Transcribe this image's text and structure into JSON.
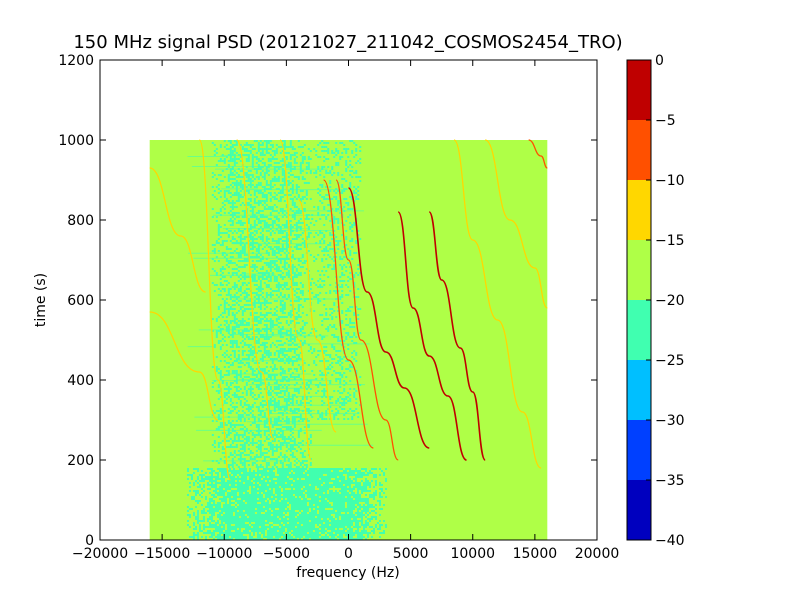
{
  "chart_data": {
    "type": "heatmap",
    "title": "150 MHz signal PSD (20121027_211042_COSMOS2454_TRO)",
    "xlabel": "frequency (Hz)",
    "ylabel": "time (s)",
    "xlim": [
      -20000,
      20000
    ],
    "ylim": [
      0,
      1200
    ],
    "xticks": [
      -20000,
      -15000,
      -10000,
      -5000,
      0,
      5000,
      10000,
      15000,
      20000
    ],
    "xtick_labels": [
      "−20000",
      "−15000",
      "−10000",
      "−5000",
      "0",
      "5000",
      "10000",
      "15000",
      "20000"
    ],
    "yticks": [
      0,
      200,
      400,
      600,
      800,
      1000,
      1200
    ],
    "ytick_labels": [
      "0",
      "200",
      "400",
      "600",
      "800",
      "1000",
      "1200"
    ],
    "data_extent": {
      "x": [
        -16000,
        16000
      ],
      "y": [
        0,
        1000
      ]
    },
    "colorbar": {
      "levels": [
        -40,
        -35,
        -30,
        -25,
        -20,
        -15,
        -10,
        -5,
        0
      ],
      "tick_labels": [
        "−40",
        "−35",
        "−30",
        "−25",
        "−20",
        "−15",
        "−10",
        "−5",
        "0"
      ],
      "colors": [
        "#0000bf",
        "#0040ff",
        "#00bfff",
        "#40ffb0",
        "#afff47",
        "#ffd700",
        "#ff5000",
        "#bf0000"
      ]
    },
    "background_level": "-20 to -15",
    "noise_level": "-25 to -20",
    "noise_regions": [
      {
        "x": [
          -13000,
          3000
        ],
        "y": [
          0,
          180
        ],
        "density": 0.85
      },
      {
        "x": [
          -11000,
          -3000
        ],
        "y": [
          180,
          1000
        ],
        "density": 0.45
      },
      {
        "x": [
          -3000,
          1000
        ],
        "y": [
          300,
          1000
        ],
        "density": 0.25
      }
    ],
    "signal_traces": [
      {
        "points": [
          [
            -16000,
            930
          ],
          [
            -13500,
            760
          ],
          [
            -11500,
            620
          ]
        ],
        "level": "-15 to -10"
      },
      {
        "points": [
          [
            -16000,
            570
          ],
          [
            -12000,
            420
          ],
          [
            -10500,
            300
          ]
        ],
        "level": "-15 to -10"
      },
      {
        "points": [
          [
            -12000,
            1000
          ],
          [
            -10500,
            400
          ],
          [
            -9500,
            150
          ]
        ],
        "level": "-15 to -10"
      },
      {
        "points": [
          [
            -9000,
            1000
          ],
          [
            -7000,
            420
          ],
          [
            -6000,
            250
          ]
        ],
        "level": "-15 to -10"
      },
      {
        "points": [
          [
            -5500,
            1000
          ],
          [
            -4000,
            500
          ],
          [
            -3000,
            200
          ]
        ],
        "level": "-15 to -10"
      },
      {
        "points": [
          [
            -4000,
            850
          ],
          [
            -2500,
            500
          ],
          [
            -1000,
            270
          ]
        ],
        "level": "-15 to -10"
      },
      {
        "points": [
          [
            -2000,
            900
          ],
          [
            0,
            450
          ],
          [
            2000,
            230
          ]
        ],
        "level": "-10 to -5"
      },
      {
        "points": [
          [
            -1000,
            900
          ],
          [
            0,
            700
          ],
          [
            1000,
            500
          ],
          [
            3000,
            300
          ],
          [
            4000,
            200
          ]
        ],
        "level": "-10 to -5"
      },
      {
        "points": [
          [
            0,
            880
          ],
          [
            1500,
            620
          ],
          [
            3000,
            470
          ],
          [
            4500,
            380
          ],
          [
            6500,
            230
          ]
        ],
        "level": "-5 to 0"
      },
      {
        "points": [
          [
            4000,
            820
          ],
          [
            5200,
            580
          ],
          [
            6500,
            460
          ],
          [
            8000,
            360
          ],
          [
            9500,
            200
          ]
        ],
        "level": "-5 to 0"
      },
      {
        "points": [
          [
            6500,
            820
          ],
          [
            7500,
            650
          ],
          [
            9000,
            480
          ],
          [
            10000,
            370
          ],
          [
            11000,
            200
          ]
        ],
        "level": "-5 to 0"
      },
      {
        "points": [
          [
            8500,
            1000
          ],
          [
            10000,
            750
          ],
          [
            12000,
            550
          ],
          [
            14000,
            320
          ],
          [
            15500,
            180
          ]
        ],
        "level": "-15 to -10"
      },
      {
        "points": [
          [
            11000,
            1000
          ],
          [
            13000,
            800
          ],
          [
            15000,
            680
          ],
          [
            16000,
            580
          ]
        ],
        "level": "-15 to -10"
      },
      {
        "points": [
          [
            14500,
            1000
          ],
          [
            15500,
            960
          ],
          [
            16000,
            930
          ]
        ],
        "level": "-10 to -5"
      }
    ]
  }
}
